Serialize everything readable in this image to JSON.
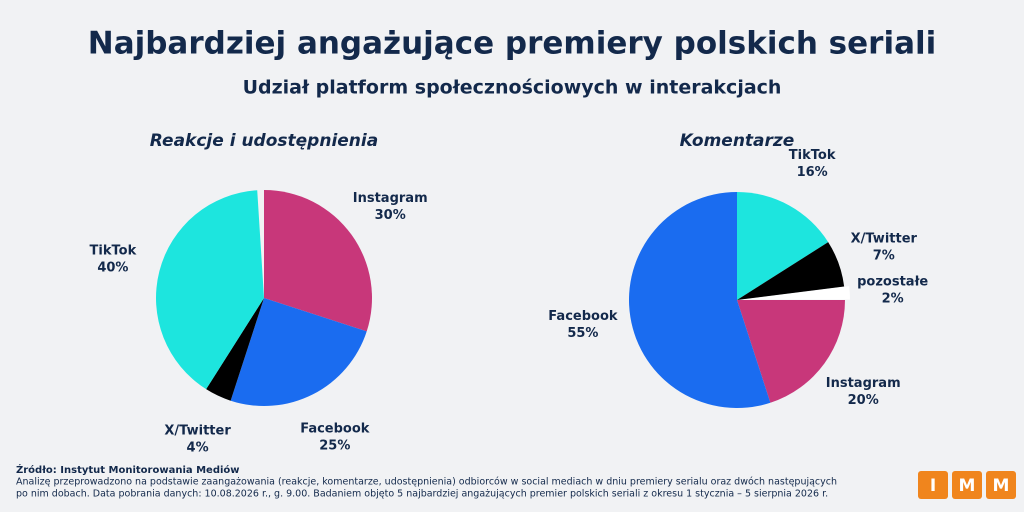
{
  "header": {
    "title": "Najbardziej angażujące premiery polskich seriali",
    "subtitle": "Udział platform społecznościowych w interakcjach"
  },
  "chart_data": [
    {
      "type": "pie",
      "title": "Reakcje i udostępnienia",
      "categories": [
        "Instagram",
        "Facebook",
        "X/Twitter",
        "TikTok"
      ],
      "values": [
        30,
        25,
        4,
        40
      ],
      "value_labels": [
        "30%",
        "25%",
        "4%",
        "40%"
      ],
      "colors": [
        "#c8377a",
        "#1a6cf0",
        "#000000",
        "#1de5de"
      ]
    },
    {
      "type": "pie",
      "title": "Komentarze",
      "categories": [
        "TikTok",
        "X/Twitter",
        "pozostałe",
        "Instagram",
        "Facebook"
      ],
      "values": [
        16,
        7,
        2,
        20,
        55
      ],
      "value_labels": [
        "16%",
        "7%",
        "2%",
        "20%",
        "55%"
      ],
      "colors": [
        "#1de5de",
        "#000000",
        "#ffffff",
        "#c8377a",
        "#1a6cf0"
      ]
    }
  ],
  "footer": {
    "source": "Źródło: Instytut Monitorowania Mediów",
    "note": [
      "Analizę przeprowadzono na podstawie zaangażowania (reakcje, komentarze, udostępnienia) odbiorców w social mediach w dniu premiery serialu oraz dwóch następujących",
      "po nim dobach. Data pobrania danych: 10.08.2026 r., g. 9.00. Badaniem objęto 5 najbardziej angażujących premier polskich seriali z okresu 1 stycznia – 5 sierpnia 2026 r."
    ],
    "logo": [
      "I",
      "M",
      "M"
    ]
  }
}
